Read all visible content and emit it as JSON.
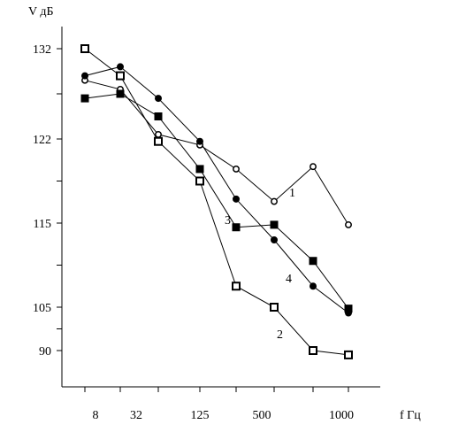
{
  "chart_data": {
    "type": "line",
    "title": "",
    "ylabel": "V дБ",
    "xlabel": "f Гц",
    "x_tick_labels": [
      "8",
      "32",
      "125",
      "500",
      "1000"
    ],
    "y_tick_labels": [
      "132",
      "122",
      "115",
      "105",
      "90"
    ],
    "series_labels": [
      "1",
      "2",
      "3",
      "4"
    ],
    "legend": "none",
    "grid": false,
    "series": [
      {
        "name": "1",
        "marker": "open-circle",
        "points": [
          {
            "x": "8",
            "y": 128.5
          },
          {
            "x": "32",
            "y": 127.5
          },
          {
            "x": "63",
            "y": 122.5
          },
          {
            "x": "125",
            "y": 121.5
          },
          {
            "x": "250",
            "y": 119.5
          },
          {
            "x": "500",
            "y": 116.8
          },
          {
            "x": "800",
            "y": 119.7
          },
          {
            "x": "1000",
            "y": 114.8
          }
        ]
      },
      {
        "name": "2",
        "marker": "open-square",
        "points": [
          {
            "x": "8",
            "y": 132.0
          },
          {
            "x": "32",
            "y": 129.0
          },
          {
            "x": "63",
            "y": 121.8
          },
          {
            "x": "125",
            "y": 118.5
          },
          {
            "x": "250",
            "y": 107.5
          },
          {
            "x": "500",
            "y": 105.0
          },
          {
            "x": "800",
            "y": 90.0
          },
          {
            "x": "1000",
            "y": 88.5
          }
        ]
      },
      {
        "name": "3",
        "marker": "filled-square",
        "points": [
          {
            "x": "8",
            "y": 126.5
          },
          {
            "x": "32",
            "y": 127.0
          },
          {
            "x": "63",
            "y": 124.5
          },
          {
            "x": "125",
            "y": 119.5
          },
          {
            "x": "250",
            "y": 114.5
          },
          {
            "x": "500",
            "y": 114.8
          },
          {
            "x": "800",
            "y": 110.5
          },
          {
            "x": "1000",
            "y": 104.5
          }
        ]
      },
      {
        "name": "4",
        "marker": "filled-circle",
        "points": [
          {
            "x": "8",
            "y": 129.0
          },
          {
            "x": "32",
            "y": 130.0
          },
          {
            "x": "63",
            "y": 126.5
          },
          {
            "x": "125",
            "y": 121.8
          },
          {
            "x": "250",
            "y": 117.0
          },
          {
            "x": "500",
            "y": 113.0
          },
          {
            "x": "800",
            "y": 107.5
          },
          {
            "x": "1000",
            "y": 103.0
          }
        ]
      }
    ]
  }
}
